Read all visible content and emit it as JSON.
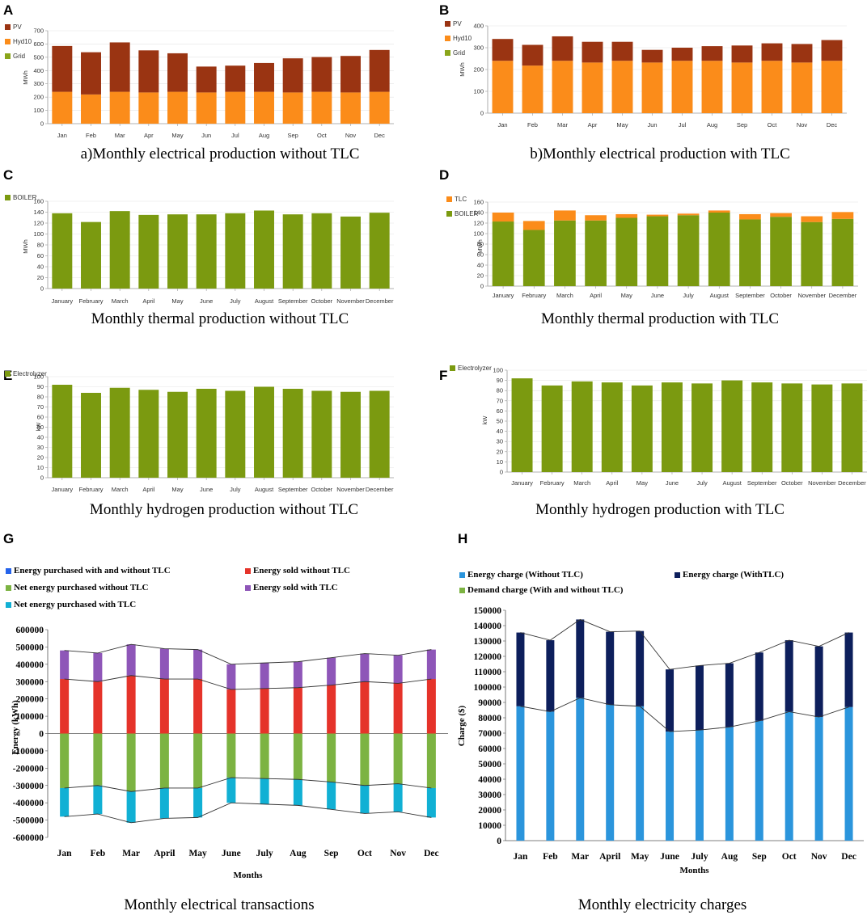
{
  "colors": {
    "pv": "#9a3412",
    "hyd10": "#fb8c1a",
    "grid": "#8aa51a",
    "boiler": "#7b9a10",
    "tlc": "#fb8c1a",
    "electrolyzer": "#7b9a10",
    "purchased_both": "#2563eb",
    "sold_without": "#e5332a",
    "net_without": "#7cb342",
    "sold_with": "#8e56b8",
    "net_with": "#11b0d4",
    "energy_without": "#2b95dc",
    "energy_with": "#0d1f5c",
    "demand": "#7cb342"
  },
  "chart_data": [
    {
      "id": "A",
      "panel_label": "A",
      "caption": "a)Monthly electrical production without TLC",
      "type": "bar",
      "stacked": true,
      "ylabel": "MWh",
      "ylim": [
        0,
        700
      ],
      "yticks": [
        0,
        100,
        200,
        300,
        400,
        500,
        600,
        700
      ],
      "categories": [
        "Jan",
        "Feb",
        "Mar",
        "Apr",
        "May",
        "Jun",
        "Jul",
        "Aug",
        "Sep",
        "Oct",
        "Nov",
        "Dec"
      ],
      "legend": [
        "PV",
        "Hyd10",
        "Grid"
      ],
      "series": [
        {
          "name": "Hyd10",
          "color_key": "hyd10",
          "values": [
            240,
            220,
            240,
            235,
            240,
            235,
            240,
            240,
            235,
            240,
            235,
            240
          ]
        },
        {
          "name": "PV",
          "color_key": "pv",
          "values": [
            345,
            318,
            372,
            317,
            290,
            195,
            197,
            217,
            257,
            262,
            275,
            315
          ]
        }
      ]
    },
    {
      "id": "B",
      "panel_label": "B",
      "caption": "b)Monthly electrical production with TLC",
      "type": "bar",
      "stacked": true,
      "ylabel": "MWh",
      "ylim": [
        0,
        400
      ],
      "yticks": [
        0,
        100,
        200,
        300,
        400
      ],
      "categories": [
        "Jan",
        "Feb",
        "Mar",
        "Apr",
        "May",
        "Jun",
        "Jul",
        "Aug",
        "Sep",
        "Oct",
        "Nov",
        "Dec"
      ],
      "legend": [
        "PV",
        "Hyd10",
        "Grid"
      ],
      "series": [
        {
          "name": "Hyd10",
          "color_key": "hyd10",
          "values": [
            240,
            218,
            240,
            232,
            240,
            232,
            240,
            240,
            232,
            240,
            232,
            240
          ]
        },
        {
          "name": "PV",
          "color_key": "pv",
          "values": [
            100,
            95,
            112,
            95,
            87,
            58,
            60,
            67,
            78,
            80,
            85,
            95
          ]
        }
      ]
    },
    {
      "id": "C",
      "panel_label": "C",
      "caption": "Monthly thermal production without TLC",
      "type": "bar",
      "stacked": true,
      "ylabel": "MWh",
      "ylim": [
        0,
        160
      ],
      "yticks": [
        0,
        20,
        40,
        60,
        80,
        100,
        120,
        140,
        160
      ],
      "categories": [
        "January",
        "February",
        "March",
        "April",
        "May",
        "June",
        "July",
        "August",
        "September",
        "October",
        "November",
        "December"
      ],
      "legend": [
        "BOILER"
      ],
      "series": [
        {
          "name": "BOILER",
          "color_key": "boiler",
          "values": [
            138,
            122,
            142,
            135,
            136,
            136,
            138,
            143,
            136,
            138,
            132,
            139
          ]
        }
      ]
    },
    {
      "id": "D",
      "panel_label": "D",
      "caption": "Monthly thermal production with TLC",
      "type": "bar",
      "stacked": true,
      "ylabel": "MWh",
      "ylim": [
        0,
        160
      ],
      "yticks": [
        0,
        20,
        40,
        60,
        80,
        100,
        120,
        140,
        160
      ],
      "categories": [
        "January",
        "February",
        "March",
        "April",
        "May",
        "June",
        "July",
        "August",
        "September",
        "October",
        "November",
        "December"
      ],
      "legend": [
        "TLC",
        "BOILER"
      ],
      "series": [
        {
          "name": "BOILER",
          "color_key": "boiler",
          "values": [
            123,
            107,
            125,
            125,
            130,
            133,
            135,
            140,
            127,
            132,
            122,
            128
          ]
        },
        {
          "name": "TLC",
          "color_key": "tlc",
          "values": [
            17,
            17,
            19,
            10,
            7,
            3,
            3,
            4,
            10,
            7,
            11,
            13
          ]
        }
      ]
    },
    {
      "id": "E",
      "panel_label": "E",
      "caption": "Monthly hydrogen production without TLC",
      "type": "bar",
      "stacked": true,
      "ylabel": "kW",
      "ylim": [
        0,
        100
      ],
      "yticks": [
        0,
        10,
        20,
        30,
        40,
        50,
        60,
        70,
        80,
        90,
        100
      ],
      "categories": [
        "January",
        "February",
        "March",
        "April",
        "May",
        "June",
        "July",
        "August",
        "September",
        "October",
        "November",
        "December"
      ],
      "legend": [
        "Electrolyzer"
      ],
      "series": [
        {
          "name": "Electrolyzer",
          "color_key": "electrolyzer",
          "values": [
            92,
            84,
            89,
            87,
            85,
            88,
            86,
            90,
            88,
            86,
            85,
            86
          ]
        }
      ]
    },
    {
      "id": "F",
      "panel_label": "F",
      "caption": "Monthly hydrogen production with TLC",
      "type": "bar",
      "stacked": true,
      "ylabel": "kW",
      "ylim": [
        0,
        100
      ],
      "yticks": [
        0,
        10,
        20,
        30,
        40,
        50,
        60,
        70,
        80,
        90,
        100
      ],
      "categories": [
        "January",
        "February",
        "March",
        "April",
        "May",
        "June",
        "July",
        "August",
        "September",
        "October",
        "November",
        "December"
      ],
      "legend": [
        "Electrolyzer"
      ],
      "series": [
        {
          "name": "Electrolyzer",
          "color_key": "electrolyzer",
          "values": [
            92,
            85,
            89,
            88,
            85,
            88,
            87,
            90,
            88,
            87,
            86,
            87
          ]
        }
      ]
    },
    {
      "id": "G",
      "panel_label": "G",
      "caption": "Monthly electrical transactions",
      "type": "bar",
      "stacked": true,
      "diverging": true,
      "ylabel": "Energy (kWh)",
      "xlabel": "Months",
      "ylim": [
        -600000,
        600000
      ],
      "yticks": [
        -600000,
        -500000,
        -400000,
        -300000,
        -200000,
        -100000,
        0,
        100000,
        200000,
        300000,
        400000,
        500000,
        600000
      ],
      "categories": [
        "Jan",
        "Feb",
        "Mar",
        "April",
        "May",
        "June",
        "July",
        "Aug",
        "Sep",
        "Oct",
        "Nov",
        "Dec"
      ],
      "legend": [
        "Energy purchased with and without TLC",
        "Energy sold without TLC",
        "Net energy purchased without TLC",
        "Energy sold with TLC",
        "Net energy purchased with TLC"
      ],
      "series": [
        {
          "name": "Energy sold without TLC",
          "color_key": "sold_without",
          "values": [
            315000,
            300000,
            335000,
            315000,
            315000,
            255000,
            260000,
            265000,
            280000,
            300000,
            290000,
            315000
          ]
        },
        {
          "name": "Energy sold with TLC",
          "color_key": "sold_with",
          "values": [
            165000,
            165000,
            180000,
            175000,
            170000,
            145000,
            148000,
            150000,
            158000,
            162000,
            162000,
            170000
          ]
        },
        {
          "name": "Net energy purchased without TLC",
          "color_key": "net_without",
          "values": [
            -315000,
            -300000,
            -335000,
            -315000,
            -315000,
            -255000,
            -260000,
            -265000,
            -280000,
            -300000,
            -290000,
            -315000
          ]
        },
        {
          "name": "Net energy purchased with TLC",
          "color_key": "net_with",
          "values": [
            -165000,
            -165000,
            -180000,
            -175000,
            -170000,
            -145000,
            -148000,
            -150000,
            -158000,
            -162000,
            -162000,
            -170000
          ]
        }
      ]
    },
    {
      "id": "H",
      "panel_label": "H",
      "caption": "Monthly electricity charges",
      "type": "bar",
      "stacked": true,
      "ylabel": "Charge ($)",
      "xlabel": "Months",
      "ylim": [
        0,
        150000
      ],
      "yticks": [
        0,
        10000,
        20000,
        30000,
        40000,
        50000,
        60000,
        70000,
        80000,
        90000,
        100000,
        110000,
        120000,
        130000,
        140000,
        150000
      ],
      "categories": [
        "Jan",
        "Feb",
        "Mar",
        "April",
        "May",
        "June",
        "July",
        "Aug",
        "Sep",
        "Oct",
        "Nov",
        "Dec"
      ],
      "legend": [
        "Energy charge (Without TLC)",
        "Energy charge (WithTLC)",
        "Demand charge (With and without TLC)"
      ],
      "series": [
        {
          "name": "Energy charge (Without TLC)",
          "color_key": "energy_without",
          "values": [
            87500,
            84000,
            93000,
            88500,
            87500,
            71000,
            72000,
            74000,
            78000,
            84000,
            80500,
            87000
          ]
        },
        {
          "name": "Energy charge (WithTLC)",
          "color_key": "energy_with",
          "values": [
            48000,
            46500,
            51000,
            47500,
            49000,
            40500,
            42000,
            41500,
            44500,
            46500,
            46000,
            48500
          ]
        }
      ]
    }
  ]
}
